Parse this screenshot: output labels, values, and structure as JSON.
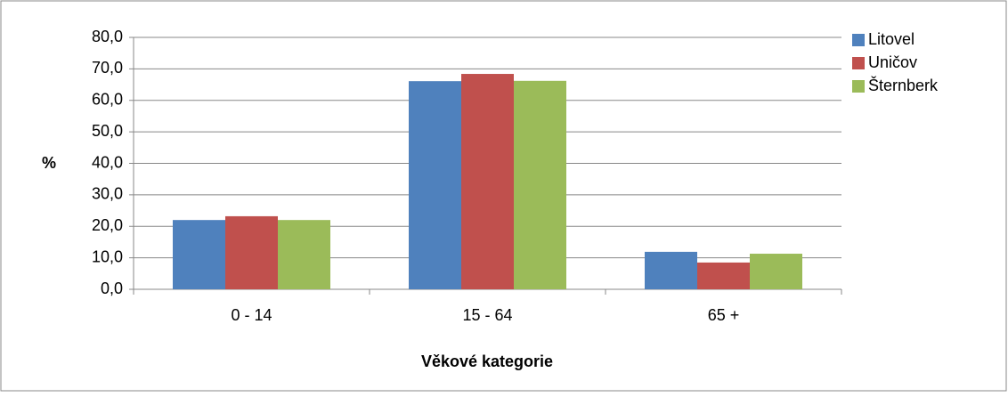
{
  "chart_data": {
    "type": "bar",
    "x_label": "Věkové kategorie",
    "y_label": "%",
    "categories": [
      "0 - 14",
      "15 - 64",
      "65 +"
    ],
    "series": [
      {
        "name": "Litovel",
        "color": "#4f81bd",
        "values": [
          22.0,
          66.1,
          11.9
        ]
      },
      {
        "name": "Uničov",
        "color": "#c0504d",
        "values": [
          23.2,
          68.4,
          8.5
        ]
      },
      {
        "name": "Šternberk",
        "color": "#9bbb59",
        "values": [
          22.0,
          66.2,
          11.3
        ]
      }
    ],
    "ylim": [
      0,
      80
    ],
    "yticks": [
      {
        "value": 0,
        "label": "0,0"
      },
      {
        "value": 10,
        "label": "10,0"
      },
      {
        "value": 20,
        "label": "20,0"
      },
      {
        "value": 30,
        "label": "30,0"
      },
      {
        "value": 40,
        "label": "40,0"
      },
      {
        "value": 50,
        "label": "50,0"
      },
      {
        "value": 60,
        "label": "60,0"
      },
      {
        "value": 70,
        "label": "70,0"
      },
      {
        "value": 80,
        "label": "80,0"
      }
    ],
    "grid": true,
    "legend": "right"
  }
}
